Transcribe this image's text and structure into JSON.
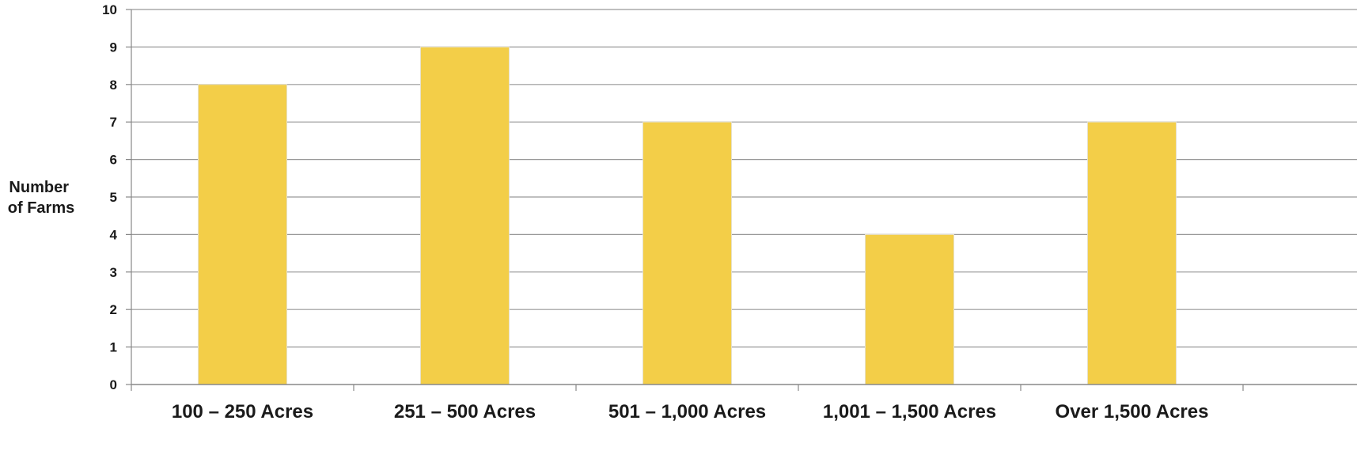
{
  "chart_data": {
    "type": "bar",
    "title": "",
    "xlabel": "",
    "ylabel": "Number of Farms",
    "ylabel_lines": [
      "Number",
      "of Farms"
    ],
    "categories": [
      "100 – 250 Acres",
      "251 – 500 Acres",
      "501 – 1,000 Acres",
      "1,001 – 1,500 Acres",
      "Over 1,500 Acres"
    ],
    "values": [
      8,
      9,
      7,
      4,
      7
    ],
    "ylim": [
      0,
      10
    ],
    "yticks": [
      0,
      1,
      2,
      3,
      4,
      5,
      6,
      7,
      8,
      9,
      10
    ],
    "grid": true,
    "legend": "none",
    "colors": {
      "bar": "#F3CE48",
      "gridline": "#999999",
      "axis": "#888888",
      "text": "#1a1a1a"
    }
  }
}
